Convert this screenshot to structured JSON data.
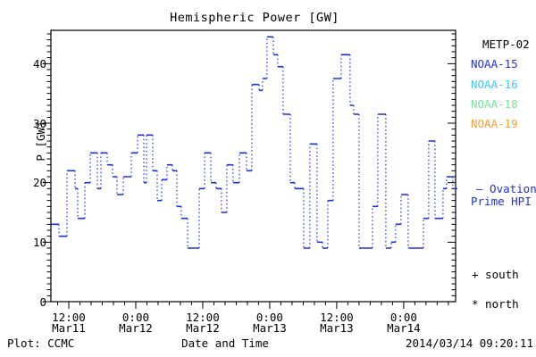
{
  "header": {
    "title": "Hemispheric Power [GW]"
  },
  "footer": {
    "plot_credit": "Plot: CCMC",
    "timestamp": "2014/03/14 09:20:11"
  },
  "legend": {
    "satellites": [
      {
        "label": "METP-02",
        "color": "#000000"
      },
      {
        "label": "NOAA-15",
        "color": "#2233cc"
      },
      {
        "label": "NOAA-16",
        "color": "#44c8f0"
      },
      {
        "label": "NOAA-18",
        "color": "#77e699"
      },
      {
        "label": "NOAA-19",
        "color": "#f2a03d"
      }
    ],
    "line_annotation": {
      "line1": "— Ovation",
      "line2": "Prime HPI",
      "color": "#2233cc"
    },
    "marker_south": "+ south",
    "marker_north": "* north"
  },
  "chart_data": {
    "type": "line",
    "subtype": "step-post, solid horizontal segments with dotted vertical risers",
    "title": "Hemispheric Power [GW]",
    "xlabel": "Date and Time",
    "ylabel": "P [GW]",
    "ylim": [
      0,
      45.6
    ],
    "y_major_ticks": [
      0,
      10,
      20,
      30,
      40
    ],
    "y_minor_tick_step": 1,
    "x_unit": "hours since 2014-03-11 00:00 UT",
    "x_domain_hours": [
      8.8,
      81.3
    ],
    "x_minor_tick_step_hours": 2,
    "x_ticks": [
      {
        "t": 12,
        "time": "12:00",
        "date": "Mar11"
      },
      {
        "t": 24,
        "time": "0:00",
        "date": "Mar12"
      },
      {
        "t": 36,
        "time": "12:00",
        "date": "Mar12"
      },
      {
        "t": 48,
        "time": "0:00",
        "date": "Mar13"
      },
      {
        "t": 60,
        "time": "12:00",
        "date": "Mar13"
      },
      {
        "t": 72,
        "time": "0:00",
        "date": "Mar14"
      }
    ],
    "grid": false,
    "legend_position": "right-outside",
    "frame_color": "#000000",
    "series": [
      {
        "name": "Ovation Prime HPI (NOAA-15)",
        "color": "#2233cc",
        "points_t_gw": [
          [
            8.8,
            13
          ],
          [
            10.24,
            11
          ],
          [
            11.68,
            22
          ],
          [
            13.12,
            19
          ],
          [
            13.6,
            14
          ],
          [
            14.88,
            20
          ],
          [
            15.84,
            25
          ],
          [
            17.12,
            19
          ],
          [
            17.76,
            25
          ],
          [
            18.88,
            23
          ],
          [
            19.84,
            21
          ],
          [
            20.64,
            18
          ],
          [
            21.76,
            21
          ],
          [
            23.2,
            25
          ],
          [
            24.32,
            28
          ],
          [
            25.44,
            20
          ],
          [
            25.92,
            28
          ],
          [
            27.04,
            22
          ],
          [
            27.84,
            17
          ],
          [
            28.64,
            20.5
          ],
          [
            29.6,
            23
          ],
          [
            30.56,
            22
          ],
          [
            31.36,
            16
          ],
          [
            32.16,
            14
          ],
          [
            33.28,
            9
          ],
          [
            35.36,
            19
          ],
          [
            36.32,
            25
          ],
          [
            37.44,
            20
          ],
          [
            38.4,
            19
          ],
          [
            39.36,
            15
          ],
          [
            40.32,
            23
          ],
          [
            41.44,
            20
          ],
          [
            42.56,
            25
          ],
          [
            43.84,
            22
          ],
          [
            44.8,
            36.5
          ],
          [
            46.08,
            35.5
          ],
          [
            46.72,
            37.5
          ],
          [
            47.52,
            44.5
          ],
          [
            48.64,
            41.5
          ],
          [
            49.44,
            39.5
          ],
          [
            50.4,
            31.5
          ],
          [
            51.68,
            20
          ],
          [
            52.48,
            19
          ],
          [
            54.08,
            9
          ],
          [
            55.2,
            26.5
          ],
          [
            56.48,
            10
          ],
          [
            57.44,
            9
          ],
          [
            58.4,
            17
          ],
          [
            59.36,
            37.5
          ],
          [
            60.8,
            41.5
          ],
          [
            62.4,
            33
          ],
          [
            63.04,
            31.5
          ],
          [
            64.0,
            9
          ],
          [
            66.4,
            16
          ],
          [
            67.36,
            31.5
          ],
          [
            68.8,
            9
          ],
          [
            69.76,
            10
          ],
          [
            70.56,
            13
          ],
          [
            71.52,
            18
          ],
          [
            72.8,
            9
          ],
          [
            75.52,
            14
          ],
          [
            76.48,
            27
          ],
          [
            77.6,
            14
          ],
          [
            79.04,
            19
          ],
          [
            79.68,
            21
          ],
          [
            80.8,
            19
          ]
        ]
      }
    ]
  }
}
